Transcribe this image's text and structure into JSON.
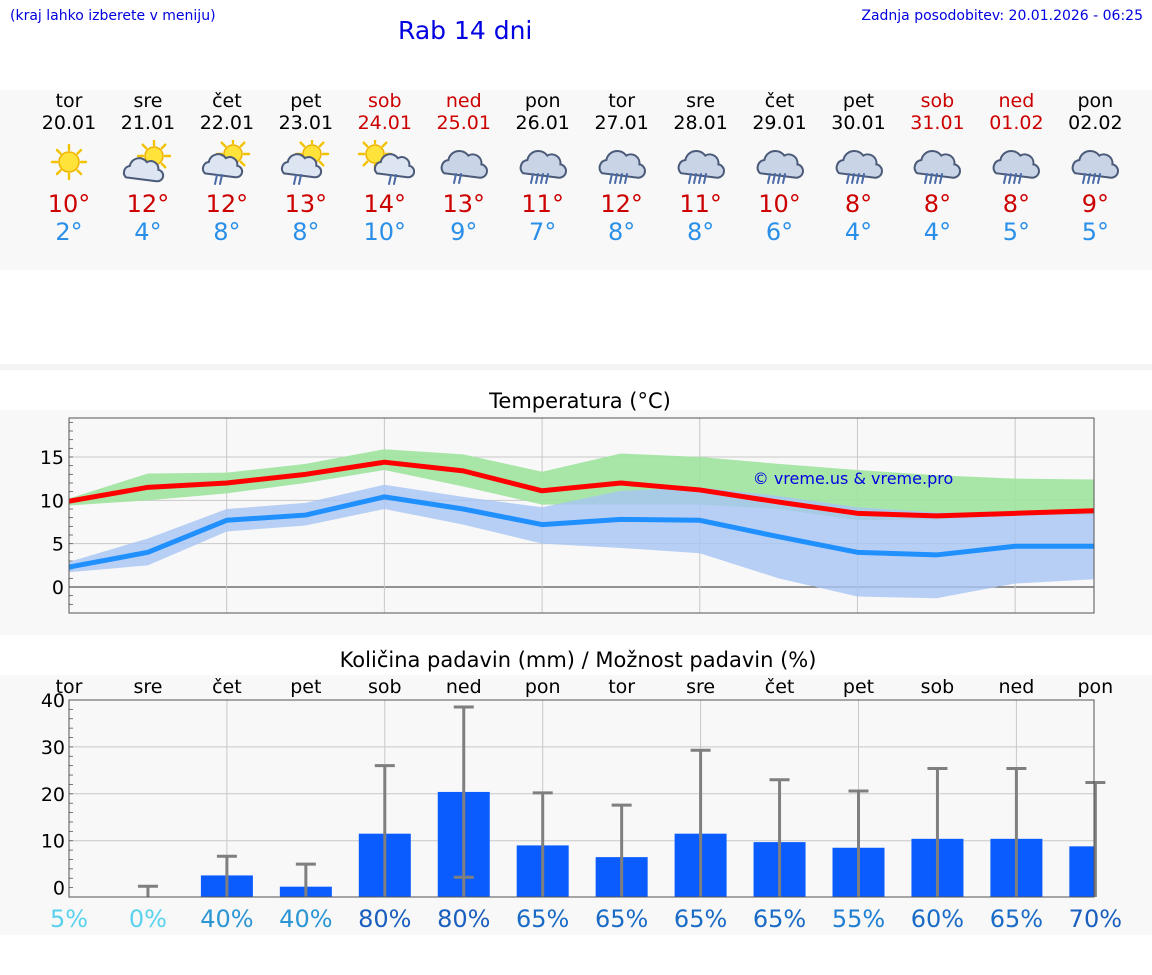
{
  "header": {
    "location_note": "(kraj lahko izberete v meniju)",
    "title": "Rab 14 dni",
    "last_update": "Zadnja posodobitev: 20.01.2026 - 06:25"
  },
  "days": [
    {
      "name": "tor",
      "date": "20.01",
      "weekend": false,
      "icon": "sunny-icon",
      "tmax": "10°",
      "tmin": "2°"
    },
    {
      "name": "sre",
      "date": "21.01",
      "weekend": false,
      "icon": "partly-cloudy-icon",
      "tmax": "12°",
      "tmin": "4°"
    },
    {
      "name": "čet",
      "date": "22.01",
      "weekend": false,
      "icon": "partly-cloudy-rain-icon",
      "tmax": "12°",
      "tmin": "8°"
    },
    {
      "name": "pet",
      "date": "23.01",
      "weekend": false,
      "icon": "partly-cloudy-rain-icon",
      "tmax": "13°",
      "tmin": "8°"
    },
    {
      "name": "sob",
      "date": "24.01",
      "weekend": true,
      "icon": "sun-rain-cloud-icon",
      "tmax": "14°",
      "tmin": "10°"
    },
    {
      "name": "ned",
      "date": "25.01",
      "weekend": true,
      "icon": "rain-cloud-icon",
      "tmax": "13°",
      "tmin": "9°"
    },
    {
      "name": "pon",
      "date": "26.01",
      "weekend": false,
      "icon": "heavy-rain-cloud-icon",
      "tmax": "11°",
      "tmin": "7°"
    },
    {
      "name": "tor",
      "date": "27.01",
      "weekend": false,
      "icon": "heavy-rain-cloud-icon",
      "tmax": "12°",
      "tmin": "8°"
    },
    {
      "name": "sre",
      "date": "28.01",
      "weekend": false,
      "icon": "heavy-rain-cloud-icon",
      "tmax": "11°",
      "tmin": "8°"
    },
    {
      "name": "čet",
      "date": "29.01",
      "weekend": false,
      "icon": "heavy-rain-cloud-icon",
      "tmax": "10°",
      "tmin": "6°"
    },
    {
      "name": "pet",
      "date": "30.01",
      "weekend": false,
      "icon": "heavy-rain-cloud-icon",
      "tmax": "8°",
      "tmin": "4°"
    },
    {
      "name": "sob",
      "date": "31.01",
      "weekend": true,
      "icon": "heavy-rain-cloud-icon",
      "tmax": "8°",
      "tmin": "4°"
    },
    {
      "name": "ned",
      "date": "01.02",
      "weekend": true,
      "icon": "heavy-rain-cloud-icon",
      "tmax": "8°",
      "tmin": "5°"
    },
    {
      "name": "pon",
      "date": "02.02",
      "weekend": false,
      "icon": "heavy-rain-cloud-icon",
      "tmax": "9°",
      "tmin": "5°"
    }
  ],
  "colors": {
    "tmax": "#cc0000",
    "tmin": "#2a8fe8",
    "temp_max_line": "#ff0000",
    "temp_min_line": "#2090ff",
    "temp_max_band": "#9fe39f",
    "temp_min_band": "#a8c4f4",
    "rain_bar": "#0a5cff",
    "whisker": "#7f7f7f",
    "link": "#0000e0"
  },
  "chart_data": [
    {
      "type": "line",
      "title": "Temperatura (°C)",
      "watermark": "© vreme.us & vreme.pro",
      "x": [
        0,
        1,
        2,
        3,
        4,
        5,
        6,
        7,
        8,
        9,
        10,
        11,
        12,
        13
      ],
      "ylim": [
        -3,
        19.5
      ],
      "yticks": [
        0,
        5,
        10,
        15
      ],
      "series": [
        {
          "name": "max",
          "values": [
            9.9,
            11.5,
            12.0,
            13.0,
            14.4,
            13.4,
            11.1,
            12.0,
            11.2,
            9.8,
            8.5,
            8.2,
            8.5,
            8.8
          ]
        },
        {
          "name": "min",
          "values": [
            2.3,
            4.0,
            7.7,
            8.3,
            10.4,
            9.0,
            7.2,
            7.8,
            7.7,
            5.8,
            4.0,
            3.7,
            4.7,
            4.7
          ]
        }
      ],
      "bands": [
        {
          "name": "max_range",
          "low": [
            9.4,
            10.0,
            10.8,
            12.0,
            13.5,
            11.6,
            9.5,
            9.5,
            9.5,
            9.0,
            7.7,
            7.8,
            8.3,
            8.3
          ],
          "high": [
            10.2,
            13.1,
            13.2,
            14.2,
            15.9,
            15.3,
            13.3,
            15.4,
            15.0,
            14.2,
            13.5,
            12.9,
            12.5,
            12.4
          ]
        },
        {
          "name": "min_range",
          "low": [
            1.7,
            2.5,
            6.4,
            7.1,
            9.0,
            7.2,
            5.0,
            4.5,
            3.9,
            1.0,
            -1.1,
            -1.3,
            0.4,
            0.9
          ],
          "high": [
            2.9,
            5.6,
            9.0,
            9.7,
            11.8,
            10.4,
            9.2,
            11.1,
            11.5,
            10.5,
            9.2,
            8.6,
            8.5,
            8.7
          ]
        }
      ]
    },
    {
      "type": "bar",
      "title": "Količina padavin (mm) / Možnost padavin (%)",
      "categories": [
        "tor",
        "sre",
        "čet",
        "pet",
        "sob",
        "ned",
        "pon",
        "tor",
        "sre",
        "čet",
        "pet",
        "sob",
        "ned",
        "pon"
      ],
      "values": [
        0,
        0,
        2.6,
        0.2,
        11.5,
        20.4,
        9.0,
        6.5,
        11.5,
        9.7,
        8.5,
        10.4,
        10.4,
        8.8
      ],
      "error_high": [
        0,
        0.3,
        6.7,
        5.0,
        26.0,
        38.5,
        20.2,
        17.6,
        29.3,
        23.0,
        20.6,
        25.4,
        25.4,
        22.4
      ],
      "error_low": [
        0,
        0,
        0,
        0,
        0,
        2.2,
        0,
        0,
        0,
        0,
        0,
        0,
        0,
        0
      ],
      "ylim": [
        -2,
        40
      ],
      "yticks": [
        0,
        10,
        20,
        30,
        40
      ],
      "probability": [
        "5%",
        "0%",
        "40%",
        "40%",
        "80%",
        "80%",
        "65%",
        "65%",
        "65%",
        "65%",
        "55%",
        "60%",
        "65%",
        "70%"
      ],
      "probability_colors": [
        "#5ad2ee",
        "#5ad2ee",
        "#2b96d3",
        "#2b96d3",
        "#1a5fbf",
        "#1a5fbf",
        "#1a6bc6",
        "#1a6bc6",
        "#1a6bc6",
        "#1a6bc6",
        "#1f7fd3",
        "#1a6bc6",
        "#1a6bc6",
        "#1a5fbf"
      ]
    }
  ]
}
